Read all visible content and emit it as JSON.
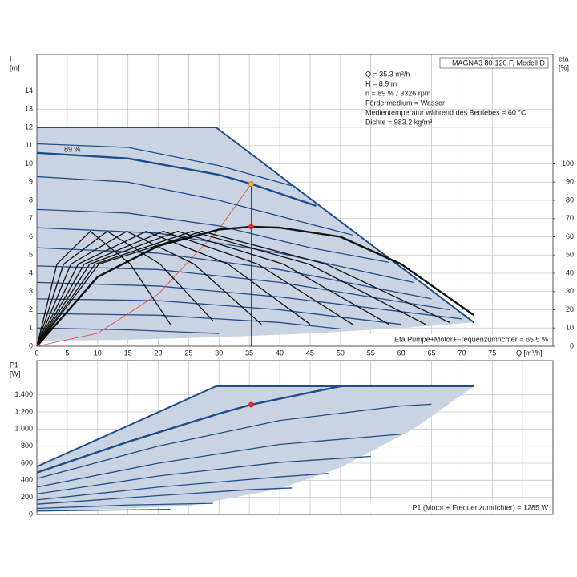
{
  "chart_data": [
    {
      "type": "line",
      "title": "MAGNA3 80-120 F, Modell D",
      "info": [
        "Q = 35.3 m³/h",
        "H = 8.9 m",
        "n = 89 % / 3326 rpm",
        "Fördermedium = Wasser",
        "Medientemperatur während des Betriebes = 60 °C",
        "Dichte = 983.2 kg/m³"
      ],
      "curve_label": "89 %",
      "footer": "Eta Pumpe+Motor+Frequenzumrichter = 65.5 %",
      "ylabel": [
        "H",
        "[m]"
      ],
      "y2label": [
        "eta",
        "[%]"
      ],
      "xlabel": "Q [m³/h]",
      "xlim": [
        0,
        85
      ],
      "ylim": [
        0,
        16
      ],
      "y2lim": [
        0,
        160
      ],
      "xticks": [
        0,
        5,
        10,
        15,
        20,
        25,
        30,
        35,
        40,
        45,
        50,
        55,
        60,
        65,
        70,
        75
      ],
      "yticks": [
        0,
        1,
        2,
        3,
        4,
        5,
        6,
        7,
        8,
        9,
        10,
        11,
        12,
        13,
        14
      ],
      "y2ticks": [
        0,
        10,
        20,
        30,
        40,
        50,
        60,
        70,
        80,
        90,
        100
      ],
      "grid": true,
      "series": [
        {
          "area": true,
          "color": "#c9d3e2",
          "x": [
            0,
            29.5,
            72,
            60,
            45,
            30,
            15,
            0
          ],
          "values": [
            12,
            12,
            1.3,
            1.0,
            0.7,
            0.5,
            0.35,
            0.3
          ]
        },
        {
          "color": "#1f4e8c",
          "width": 2,
          "x": [
            0,
            29.5,
            72
          ],
          "values": [
            12,
            12,
            1.3
          ]
        },
        {
          "color": "#1f4e8c",
          "width": 1.3,
          "x": [
            0,
            15,
            30,
            42
          ],
          "values": [
            11.1,
            10.9,
            9.9,
            8.8
          ]
        },
        {
          "color": "#1f4e8c",
          "width": 2.4,
          "x": [
            0,
            15,
            30,
            35.3,
            46
          ],
          "values": [
            10.6,
            10.3,
            9.4,
            8.9,
            7.7
          ]
        },
        {
          "color": "#1f4e8c",
          "width": 1.3,
          "x": [
            0,
            15,
            30,
            45,
            52
          ],
          "values": [
            9.3,
            9.0,
            8.0,
            6.7,
            6.1
          ]
        },
        {
          "color": "#1f4e8c",
          "width": 1.3,
          "x": [
            0,
            15,
            30,
            45,
            58
          ],
          "values": [
            7.5,
            7.3,
            6.6,
            5.4,
            4.6
          ]
        },
        {
          "color": "#1f4e8c",
          "width": 1.3,
          "x": [
            0,
            20,
            40,
            62
          ],
          "values": [
            6.5,
            6.2,
            5.1,
            3.5
          ]
        },
        {
          "color": "#1f4e8c",
          "width": 1.3,
          "x": [
            0,
            20,
            40,
            65
          ],
          "values": [
            5.4,
            5.1,
            4.2,
            2.6
          ]
        },
        {
          "color": "#1f4e8c",
          "width": 1.3,
          "x": [
            0,
            20,
            40,
            68
          ],
          "values": [
            4.4,
            4.2,
            3.5,
            2.0
          ]
        },
        {
          "color": "#1f4e8c",
          "width": 1.3,
          "x": [
            0,
            20,
            40,
            70
          ],
          "values": [
            3.5,
            3.3,
            2.7,
            1.5
          ]
        },
        {
          "color": "#1f4e8c",
          "width": 1.3,
          "x": [
            0,
            20,
            40,
            60
          ],
          "values": [
            2.6,
            2.5,
            2.0,
            1.2
          ]
        },
        {
          "color": "#1f4e8c",
          "width": 1.3,
          "x": [
            0,
            20,
            40,
            50
          ],
          "values": [
            1.8,
            1.7,
            1.3,
            0.95
          ]
        },
        {
          "color": "#1f4e8c",
          "width": 1.3,
          "x": [
            0,
            15,
            30
          ],
          "values": [
            1.0,
            0.9,
            0.7
          ]
        },
        {
          "color": "#e8452c",
          "width": 0.8,
          "x": [
            0,
            10,
            20,
            30,
            35.3
          ],
          "values": [
            0,
            0.71,
            2.86,
            6.43,
            8.9
          ]
        },
        {
          "axis": "y2",
          "color": "#111111",
          "width": 1.3,
          "x": [
            0,
            3.3,
            8.8,
            15.4,
            22
          ],
          "values": [
            0,
            45,
            63,
            45,
            12
          ]
        },
        {
          "axis": "y2",
          "color": "#111111",
          "width": 1.3,
          "x": [
            0,
            4.4,
            11.6,
            20.3,
            29
          ],
          "values": [
            0,
            45,
            63,
            45,
            14
          ]
        },
        {
          "axis": "y2",
          "color": "#111111",
          "width": 1.3,
          "x": [
            0,
            5.6,
            14.8,
            25.9,
            37
          ],
          "values": [
            0,
            45,
            63,
            45,
            12
          ]
        },
        {
          "axis": "y2",
          "color": "#111111",
          "width": 1.3,
          "x": [
            0,
            6.8,
            18,
            31.5,
            45
          ],
          "values": [
            0,
            45,
            63,
            45,
            12
          ]
        },
        {
          "axis": "y2",
          "color": "#111111",
          "width": 1.3,
          "x": [
            0,
            7.8,
            20.8,
            36.4,
            52
          ],
          "values": [
            0,
            45,
            63,
            45,
            12
          ]
        },
        {
          "axis": "y2",
          "color": "#111111",
          "width": 1.3,
          "x": [
            0,
            8.7,
            23.2,
            40.6,
            58
          ],
          "values": [
            0,
            45,
            63,
            45,
            12
          ]
        },
        {
          "axis": "y2",
          "color": "#111111",
          "width": 1.3,
          "x": [
            0,
            9.6,
            25.6,
            44.8,
            64
          ],
          "values": [
            0,
            45,
            63,
            45,
            12
          ]
        },
        {
          "axis": "y2",
          "color": "#111111",
          "width": 1.3,
          "x": [
            0,
            10.2,
            27.2,
            47.6,
            68
          ],
          "values": [
            0,
            45,
            63,
            45,
            13
          ]
        },
        {
          "axis": "y2",
          "color": "#111111",
          "width": 2.4,
          "x": [
            0,
            10,
            20,
            30,
            35.3,
            40,
            50,
            60,
            72
          ],
          "values": [
            0,
            38,
            55,
            64,
            65.5,
            65,
            60,
            45,
            17
          ]
        },
        {
          "marker": true,
          "crosshair": true,
          "color": "#f5b731",
          "x": [
            35.3
          ],
          "values": [
            8.9
          ]
        },
        {
          "marker": true,
          "axis": "y2",
          "color": "#e8252c",
          "x": [
            35.3
          ],
          "values": [
            65.5
          ]
        }
      ]
    },
    {
      "type": "line",
      "footer": "P1 (Motor + Frequenzumrichter) = 1285 W",
      "ylabel": [
        "P1",
        "[W]"
      ],
      "xlim": [
        0,
        85
      ],
      "ylim": [
        0,
        1800
      ],
      "xticks": [
        0,
        5,
        10,
        15,
        20,
        25,
        30,
        35,
        40,
        45,
        50,
        55,
        60,
        65,
        70,
        75,
        80
      ],
      "xtick_labels": false,
      "yticks": [
        0,
        200,
        400,
        600,
        800,
        {
          "value": 1000,
          "label": "1.000"
        },
        {
          "value": 1200,
          "label": "1.200"
        },
        {
          "value": 1400,
          "label": "1.400"
        }
      ],
      "grid": true,
      "series": [
        {
          "area": true,
          "color": "#c9d3e2",
          "x": [
            0,
            29.5,
            72,
            62,
            50,
            40,
            25,
            0
          ],
          "values": [
            560,
            1500,
            1500,
            1000,
            550,
            300,
            100,
            30
          ]
        },
        {
          "color": "#1f4e8c",
          "width": 2,
          "x": [
            0,
            29.5,
            72
          ],
          "values": [
            560,
            1500,
            1500
          ]
        },
        {
          "color": "#1f4e8c",
          "width": 2.4,
          "x": [
            0,
            15,
            30,
            35.3,
            50
          ],
          "values": [
            490,
            850,
            1180,
            1285,
            1500
          ]
        },
        {
          "color": "#1f4e8c",
          "width": 1.3,
          "x": [
            0,
            20,
            40,
            60,
            65
          ],
          "values": [
            420,
            800,
            1100,
            1270,
            1290
          ]
        },
        {
          "color": "#1f4e8c",
          "width": 1.3,
          "x": [
            0,
            20,
            40,
            60
          ],
          "values": [
            320,
            600,
            820,
            940
          ]
        },
        {
          "color": "#1f4e8c",
          "width": 1.3,
          "x": [
            0,
            20,
            40,
            55
          ],
          "values": [
            240,
            450,
            610,
            680
          ]
        },
        {
          "color": "#1f4e8c",
          "width": 1.3,
          "x": [
            0,
            20,
            40,
            48
          ],
          "values": [
            170,
            320,
            440,
            480
          ]
        },
        {
          "color": "#1f4e8c",
          "width": 1.3,
          "x": [
            0,
            20,
            35,
            42
          ],
          "values": [
            120,
            220,
            290,
            310
          ]
        },
        {
          "color": "#1f4e8c",
          "width": 1.3,
          "x": [
            0,
            15,
            29
          ],
          "values": [
            70,
            110,
            130
          ]
        },
        {
          "color": "#1f4e8c",
          "width": 1.3,
          "x": [
            0,
            22
          ],
          "values": [
            40,
            60
          ]
        },
        {
          "marker": true,
          "color": "#e8252c",
          "x": [
            35.3
          ],
          "values": [
            1285
          ]
        }
      ]
    }
  ]
}
